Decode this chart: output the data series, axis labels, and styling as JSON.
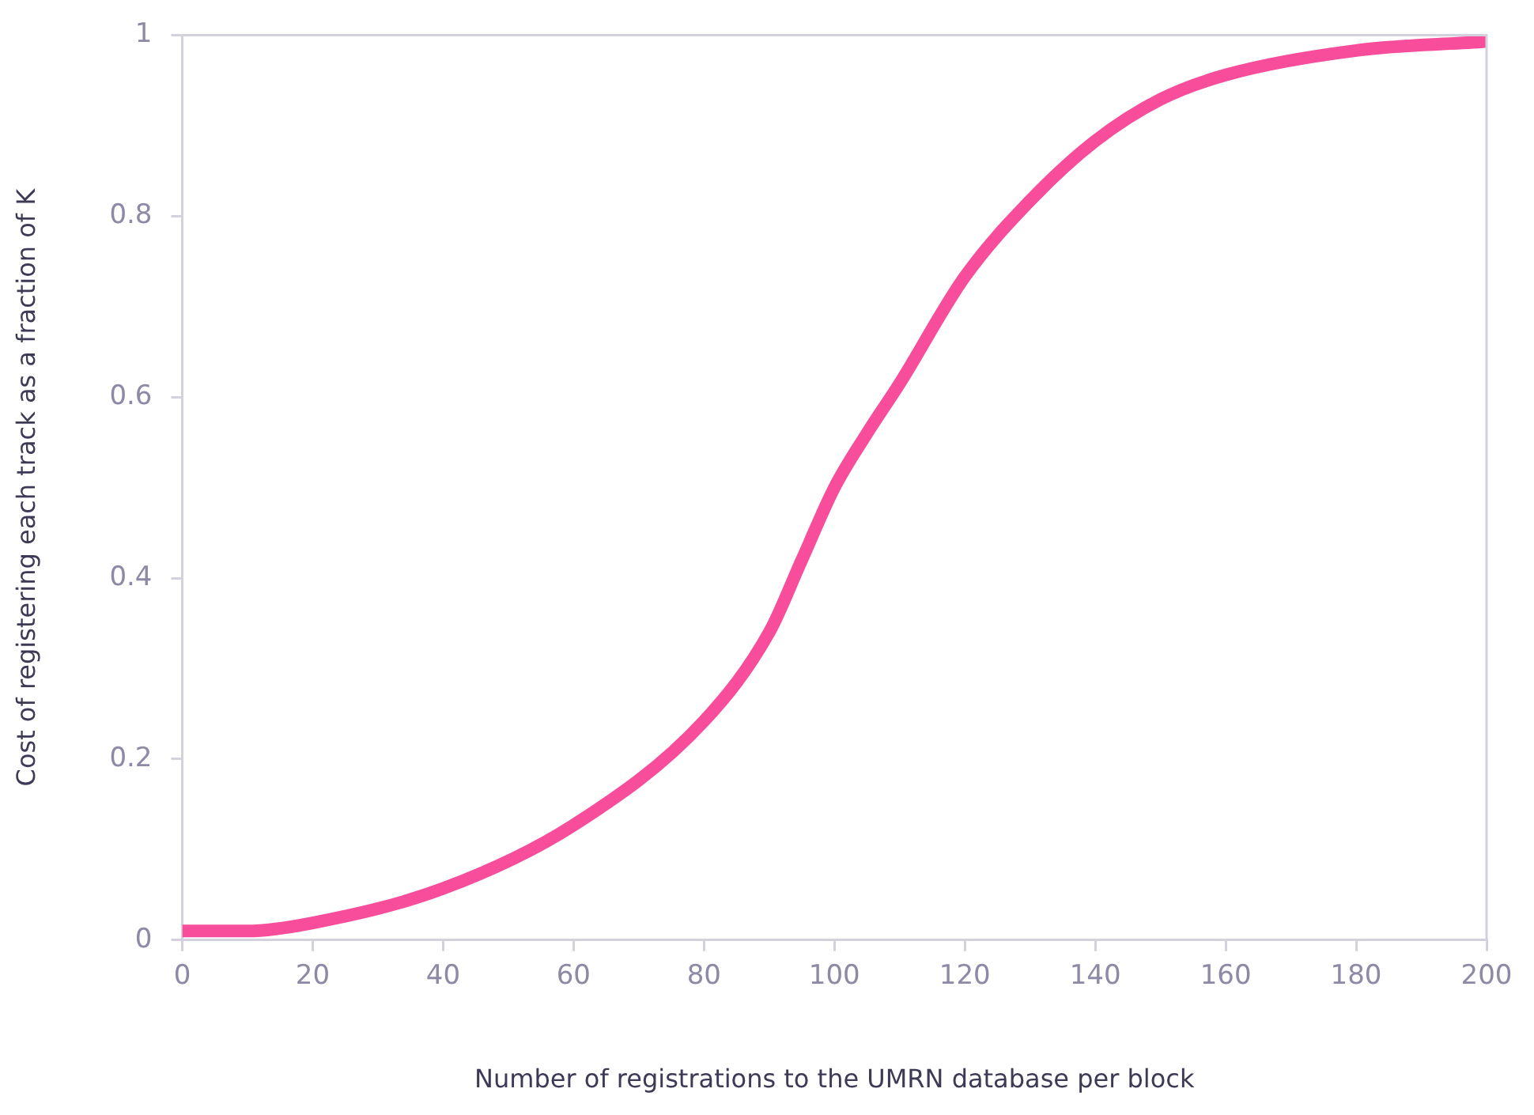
{
  "chart_data": {
    "type": "line",
    "xlabel": "Number of registrations to the UMRN database per block",
    "ylabel": "Cost of registering each track as a fraction of K",
    "series": [
      {
        "color": "#f74d9b",
        "x": [
          0,
          10,
          20,
          40,
          60,
          80,
          90,
          95,
          100,
          105,
          110,
          120,
          130,
          140,
          150,
          160,
          180,
          200
        ],
        "values": [
          0.01,
          0.01,
          0.019,
          0.057,
          0.127,
          0.242,
          0.34,
          0.42,
          0.5,
          0.56,
          0.615,
          0.733,
          0.817,
          0.883,
          0.929,
          0.956,
          0.983,
          0.993
        ]
      }
    ],
    "xlim": [
      0,
      200
    ],
    "xticks": [
      0,
      20,
      40,
      60,
      80,
      100,
      120,
      140,
      160,
      180,
      200
    ],
    "ylim": [
      0,
      1
    ],
    "yticks": [
      0,
      0.2,
      0.4,
      0.6,
      0.8,
      1
    ],
    "grid": false,
    "legend": false,
    "marker": "none",
    "line_style": "solid"
  }
}
